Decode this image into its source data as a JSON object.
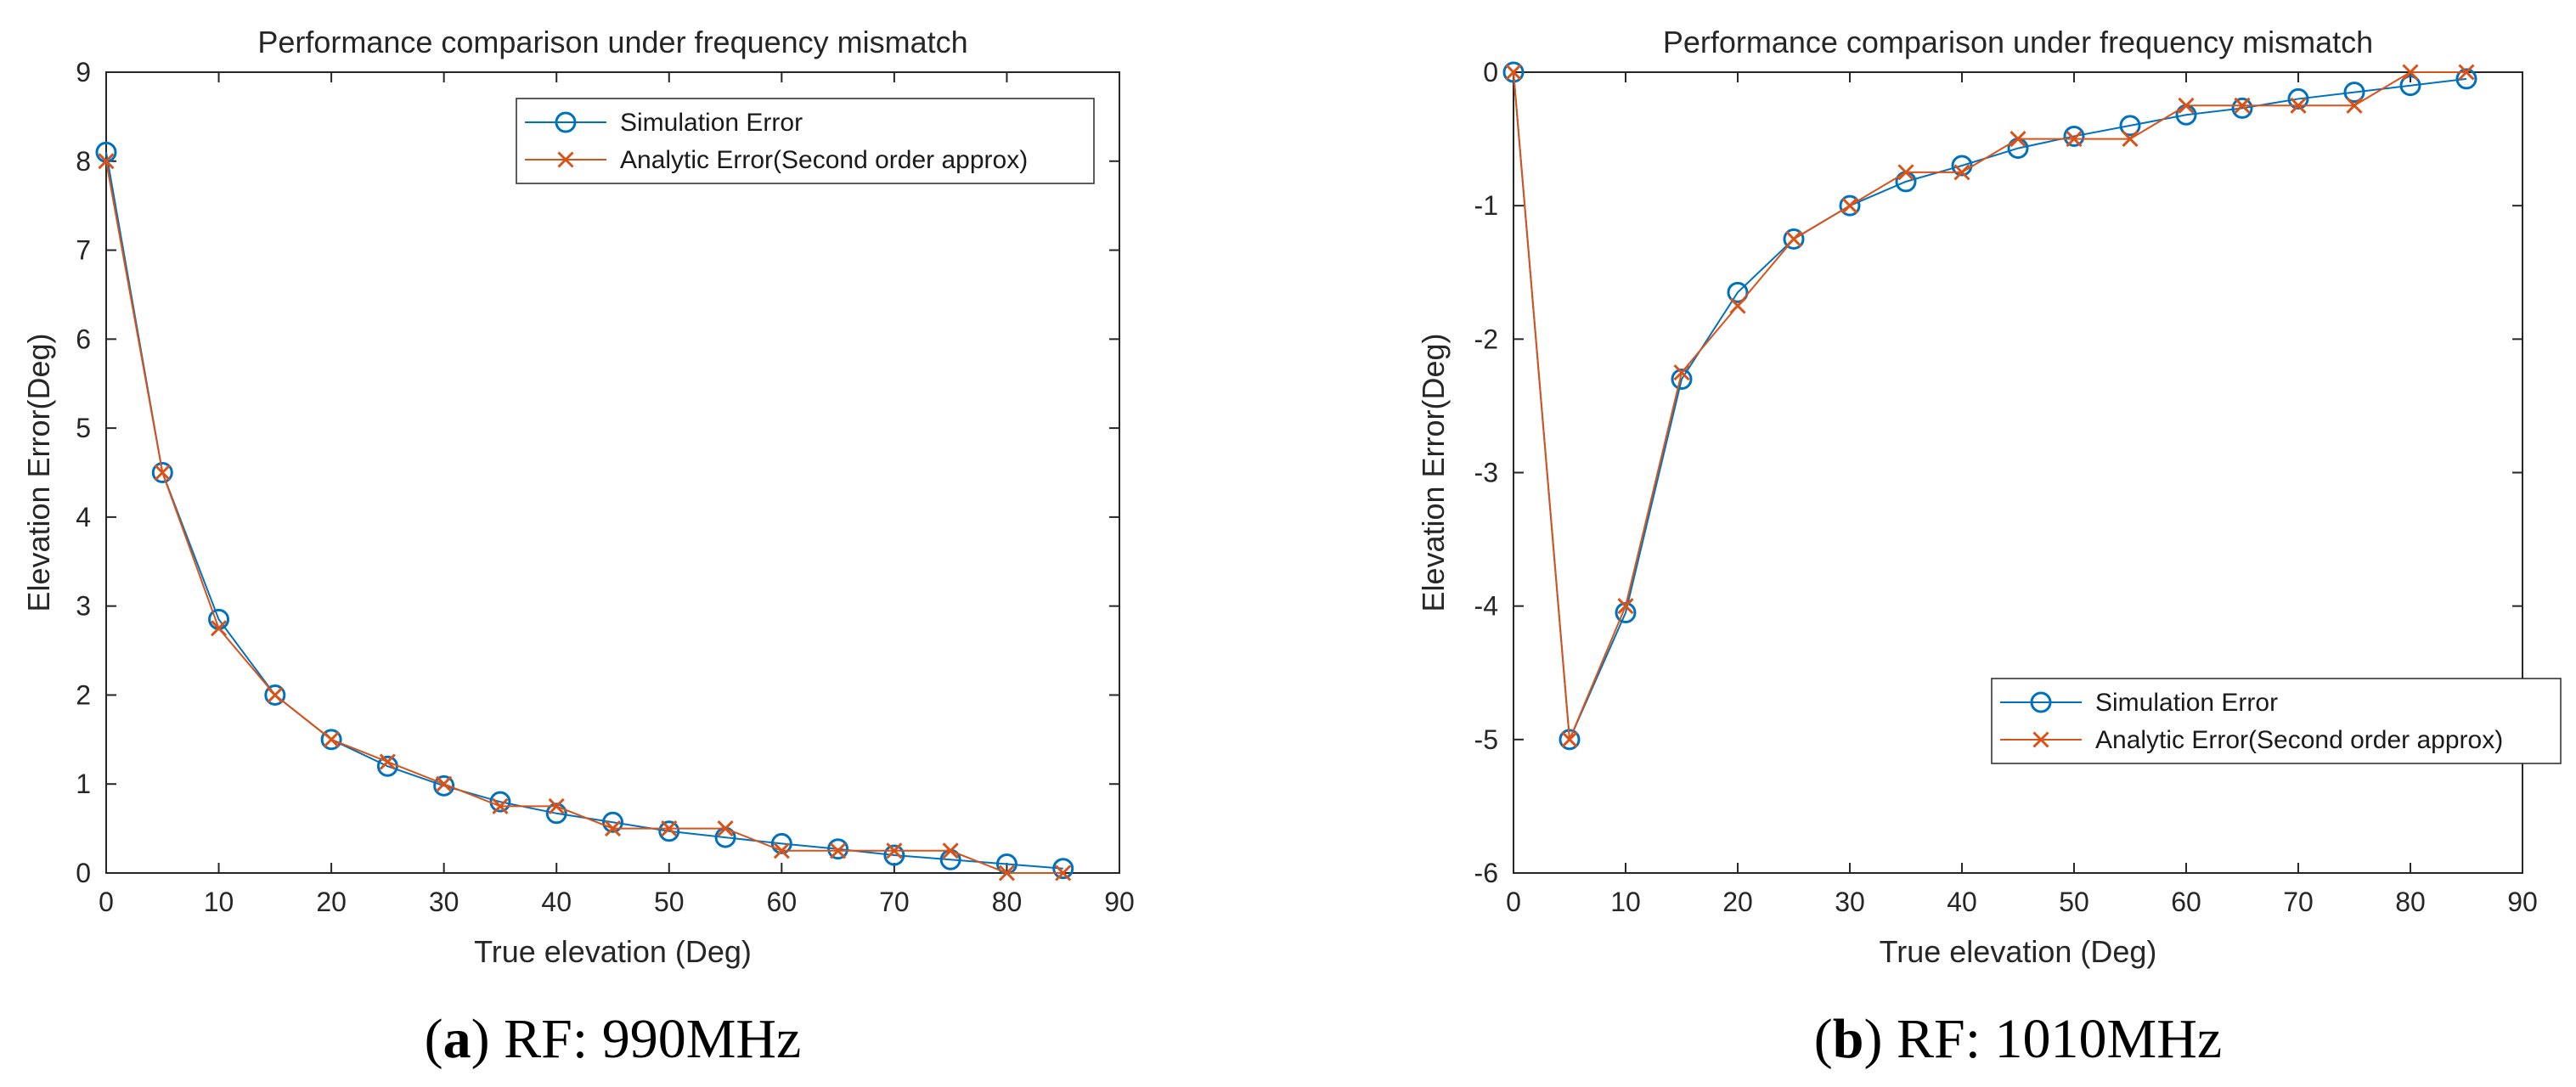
{
  "colors": {
    "simulation": "#0072BD",
    "analytic": "#D95319",
    "axis": "#262626"
  },
  "chart_data": [
    {
      "type": "line",
      "title": "Performance comparison under frequency mismatch",
      "xlabel": "True elevation (Deg)",
      "ylabel": "Elevation Error(Deg)",
      "xlim": [
        0,
        90
      ],
      "ylim": [
        0,
        9
      ],
      "xticks": [
        "0",
        "10",
        "20",
        "30",
        "40",
        "50",
        "60",
        "70",
        "80",
        "90"
      ],
      "yticks": [
        "0",
        "1",
        "2",
        "3",
        "4",
        "5",
        "6",
        "7",
        "8",
        "9"
      ],
      "grid": false,
      "legend_position": "top-right",
      "x": [
        0,
        5,
        10,
        15,
        20,
        25,
        30,
        35,
        40,
        45,
        50,
        55,
        60,
        65,
        70,
        75,
        80,
        85
      ],
      "series": [
        {
          "name": "Simulation Error",
          "marker": "circle",
          "values": [
            8.1,
            4.5,
            2.85,
            2.0,
            1.5,
            1.2,
            0.98,
            0.8,
            0.67,
            0.57,
            0.47,
            0.4,
            0.33,
            0.27,
            0.2,
            0.15,
            0.1,
            0.05
          ]
        },
        {
          "name": "Analytic Error(Second order approx)",
          "marker": "x",
          "values": [
            8.0,
            4.5,
            2.75,
            2.0,
            1.5,
            1.25,
            1.0,
            0.75,
            0.75,
            0.5,
            0.5,
            0.5,
            0.25,
            0.25,
            0.25,
            0.25,
            0.0,
            0.0
          ]
        }
      ],
      "caption_label": "a",
      "caption_text": "RF: 990MHz"
    },
    {
      "type": "line",
      "title": "Performance comparison under frequency mismatch",
      "xlabel": "True elevation (Deg)",
      "ylabel": "Elevation Error(Deg)",
      "xlim": [
        0,
        90
      ],
      "ylim": [
        -6,
        0
      ],
      "xticks": [
        "0",
        "10",
        "20",
        "30",
        "40",
        "50",
        "60",
        "70",
        "80",
        "90"
      ],
      "yticks": [
        "-6",
        "-5",
        "-4",
        "-3",
        "-2",
        "-1",
        "0"
      ],
      "grid": false,
      "legend_position": "bottom-right",
      "x": [
        0,
        5,
        10,
        15,
        20,
        25,
        30,
        35,
        40,
        45,
        50,
        55,
        60,
        65,
        70,
        75,
        80,
        85
      ],
      "series": [
        {
          "name": "Simulation Error",
          "marker": "circle",
          "values": [
            0.0,
            -5.0,
            -4.05,
            -2.3,
            -1.65,
            -1.25,
            -1.0,
            -0.82,
            -0.7,
            -0.57,
            -0.48,
            -0.4,
            -0.32,
            -0.27,
            -0.2,
            -0.15,
            -0.1,
            -0.05
          ]
        },
        {
          "name": "Analytic Error(Second order approx)",
          "marker": "x",
          "values": [
            0.0,
            -5.0,
            -4.0,
            -2.25,
            -1.75,
            -1.25,
            -1.0,
            -0.75,
            -0.75,
            -0.5,
            -0.5,
            -0.5,
            -0.25,
            -0.25,
            -0.25,
            -0.25,
            0.0,
            0.0
          ]
        }
      ],
      "caption_label": "b",
      "caption_text": "RF: 1010MHz"
    }
  ]
}
